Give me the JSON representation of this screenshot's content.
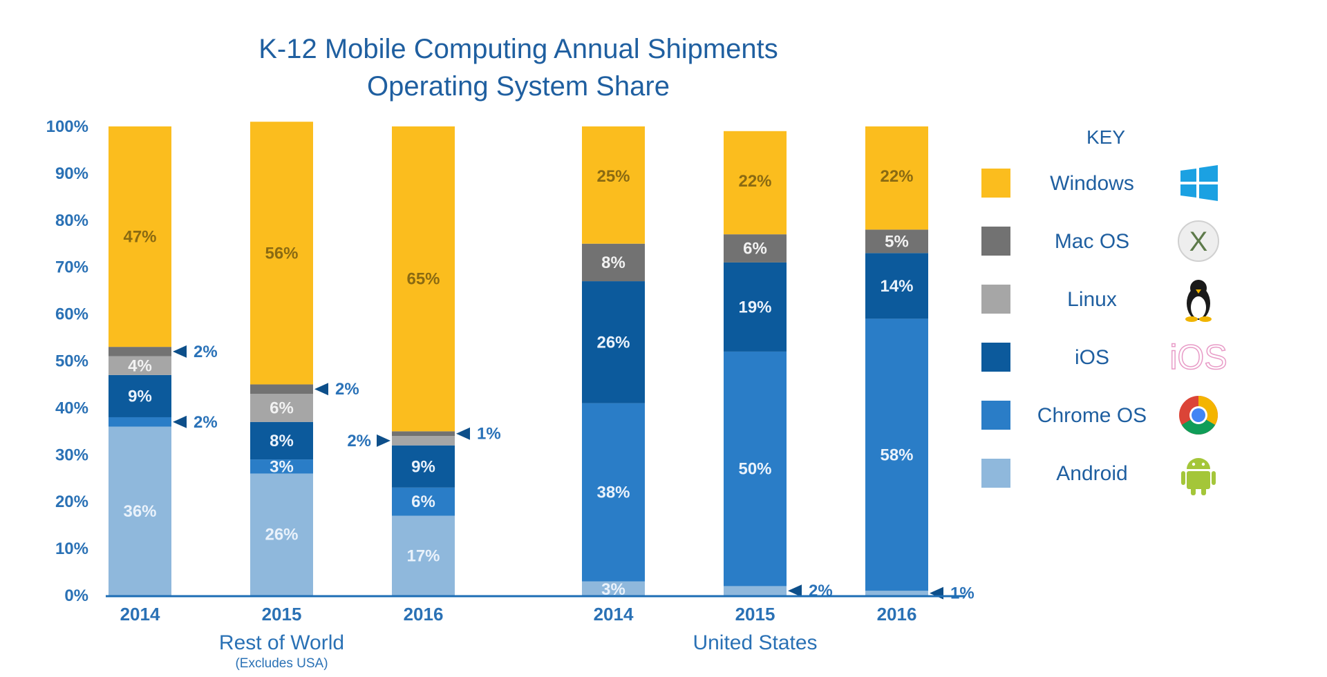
{
  "chart_data": {
    "type": "bar",
    "stacked": true,
    "title": "K-12 Mobile Computing Annual Shipments",
    "subtitle": "Operating System Share",
    "y_ticks": [
      "100%",
      "90%",
      "80%",
      "70%",
      "60%",
      "50%",
      "40%",
      "30%",
      "20%",
      "10%",
      "0%"
    ],
    "ylim": [
      0,
      100
    ],
    "groups": [
      {
        "label": "Rest of World",
        "sublabel": "(Excludes USA)"
      },
      {
        "label": "United States",
        "sublabel": ""
      }
    ],
    "categories": [
      "2014",
      "2015",
      "2016",
      "2014",
      "2015",
      "2016"
    ],
    "series": [
      {
        "name": "Android",
        "color": "#8fb8dc",
        "values": [
          36,
          26,
          17,
          3,
          2,
          1
        ],
        "labels": [
          "36%",
          "26%",
          "17%",
          "3%",
          "2%",
          "1%"
        ]
      },
      {
        "name": "Chrome OS",
        "color": "#2a7dc7",
        "values": [
          2,
          3,
          6,
          38,
          50,
          58
        ],
        "labels": [
          "2%",
          "3%",
          "6%",
          "38%",
          "50%",
          "58%"
        ]
      },
      {
        "name": "iOS",
        "color": "#0c5a9c",
        "values": [
          9,
          8,
          9,
          26,
          19,
          14
        ],
        "labels": [
          "9%",
          "8%",
          "9%",
          "26%",
          "19%",
          "14%"
        ]
      },
      {
        "name": "Linux",
        "color": "#a6a6a6",
        "values": [
          4,
          6,
          2,
          0,
          0,
          0
        ],
        "labels": [
          "4%",
          "6%",
          "2%",
          "",
          "",
          ""
        ]
      },
      {
        "name": "Mac OS",
        "color": "#727272",
        "values": [
          2,
          2,
          1,
          8,
          6,
          5
        ],
        "labels": [
          "2%",
          "2%",
          "1%",
          "8%",
          "6%",
          "5%"
        ]
      },
      {
        "name": "Windows",
        "color": "#fbbd1e",
        "values": [
          47,
          56,
          65,
          25,
          22,
          22
        ],
        "labels": [
          "47%",
          "56%",
          "65%",
          "25%",
          "22%",
          "22%"
        ]
      }
    ],
    "legend": {
      "title": "KEY",
      "position": "right",
      "items": [
        {
          "name": "Windows",
          "icon": "windows-logo-icon"
        },
        {
          "name": "Mac OS",
          "icon": "mac-os-x-icon"
        },
        {
          "name": "Linux",
          "icon": "linux-tux-icon"
        },
        {
          "name": "iOS",
          "icon": "ios-logo-icon"
        },
        {
          "name": "Chrome OS",
          "icon": "chrome-logo-icon"
        },
        {
          "name": "Android",
          "icon": "android-robot-icon"
        }
      ]
    },
    "icon_texts": {
      "mac": "X",
      "ios": "iOS"
    },
    "colors": {
      "title": "#1f5fa0",
      "axis_text": "#2a71b5",
      "label_text": "#2a72b8",
      "axis_line": "#1c6db5",
      "arrow": "#0d4f8a",
      "windows_logo": "#1ba1e2",
      "ios_logo": "#e89bc7",
      "android": "#a4c639"
    }
  }
}
